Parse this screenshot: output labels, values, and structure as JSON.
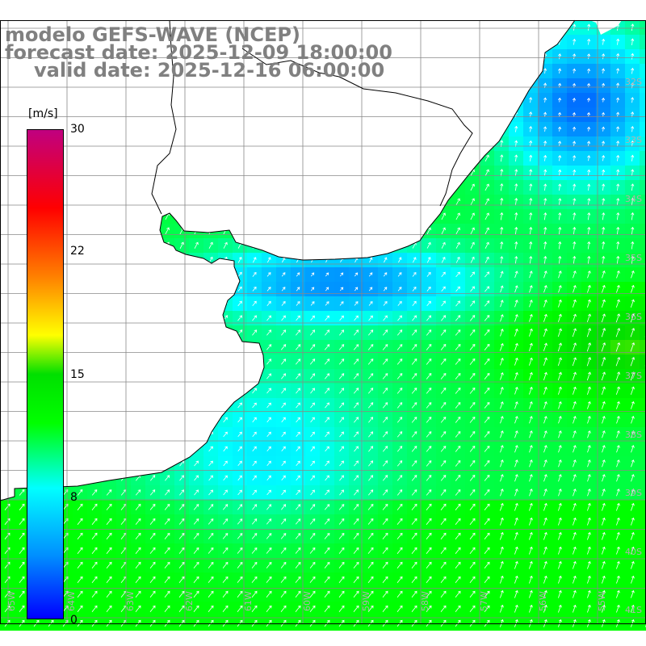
{
  "title": {
    "line1": "modelo GEFS-WAVE (NCEP)",
    "line2": "forecast date: 2025-12-09 18:00:00",
    "line3": "valid date: 2025-12-16 06:00:00"
  },
  "colorbar": {
    "unit": "[m/s]",
    "min": 0,
    "max": 30,
    "ticks": [
      "30",
      "22",
      "15",
      "8",
      "0"
    ],
    "colors": [
      "#0000ff",
      "#0090ff",
      "#00ffff",
      "#00ff00",
      "#ffff00",
      "#ff8000",
      "#ff0000",
      "#c00080"
    ]
  },
  "map": {
    "variable": "wind speed with direction arrows",
    "lat_labels": [
      "32S",
      "33S",
      "34S",
      "35S",
      "36S",
      "37S",
      "38S",
      "39S",
      "40S",
      "41S"
    ],
    "lon_labels": [
      "65W",
      "64W",
      "63W",
      "62W",
      "61W",
      "60W",
      "59W",
      "58W",
      "57W",
      "56W",
      "55W"
    ],
    "grid": true,
    "land_color": "#ffffff",
    "coastline_color": "#000000",
    "arrow_color": "#ffffff"
  }
}
